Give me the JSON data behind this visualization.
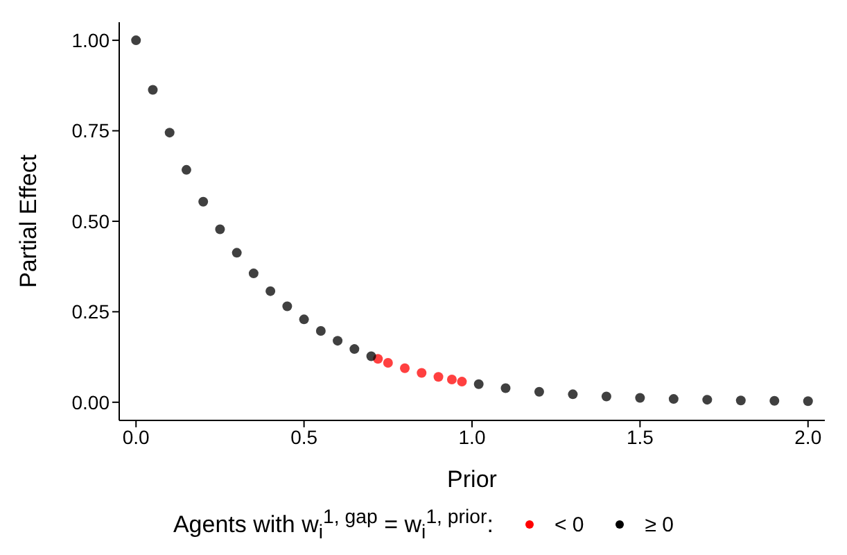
{
  "chart_data": {
    "type": "scatter",
    "xlabel": "Prior",
    "ylabel": "Partial Effect",
    "legend_title": "Agents with w$_{i}$$^{1, gap}$ = w$_{i}$$^{1, prior}$:",
    "legend": "bottom",
    "grid": false,
    "marker": "circle",
    "xlim": [
      -0.05,
      2.05
    ],
    "ylim": [
      -0.05,
      1.05
    ],
    "xticks": [
      {
        "value": 0,
        "label": "0.0"
      },
      0.5,
      {
        "value": 1,
        "label": "1.0"
      },
      1.5,
      {
        "value": 2,
        "label": "2.0"
      }
    ],
    "yticks": [
      {
        "value": 0,
        "label": "0.00"
      },
      0.25,
      {
        "value": 0.5,
        "label": "0.50"
      },
      0.75,
      {
        "value": 1,
        "label": "1.00"
      }
    ],
    "series": [
      {
        "name": "< 0",
        "color": "#ff0000",
        "x": [
          0.72,
          0.75,
          0.8,
          0.85,
          0.9,
          0.94,
          0.97
        ],
        "values": [
          0.12,
          0.109,
          0.094,
          0.081,
          0.07,
          0.063,
          0.057
        ]
      },
      {
        "name": "≥ 0",
        "color": "#000000",
        "x": [
          0,
          0.05,
          0.1,
          0.15,
          0.2,
          0.25,
          0.3,
          0.35,
          0.4,
          0.45,
          0.5,
          0.55,
          0.6,
          0.65,
          0.7,
          1.02,
          1.1,
          1.2,
          1.3,
          1.4,
          1.5,
          1.6,
          1.7,
          1.8,
          1.9,
          2.0
        ],
        "values": [
          1.0,
          0.863,
          0.745,
          0.642,
          0.554,
          0.478,
          0.413,
          0.356,
          0.307,
          0.265,
          0.229,
          0.197,
          0.17,
          0.147,
          0.127,
          0.05,
          0.039,
          0.029,
          0.022,
          0.016,
          0.012,
          0.009,
          0.007,
          0.005,
          0.004,
          0.003
        ]
      }
    ]
  }
}
